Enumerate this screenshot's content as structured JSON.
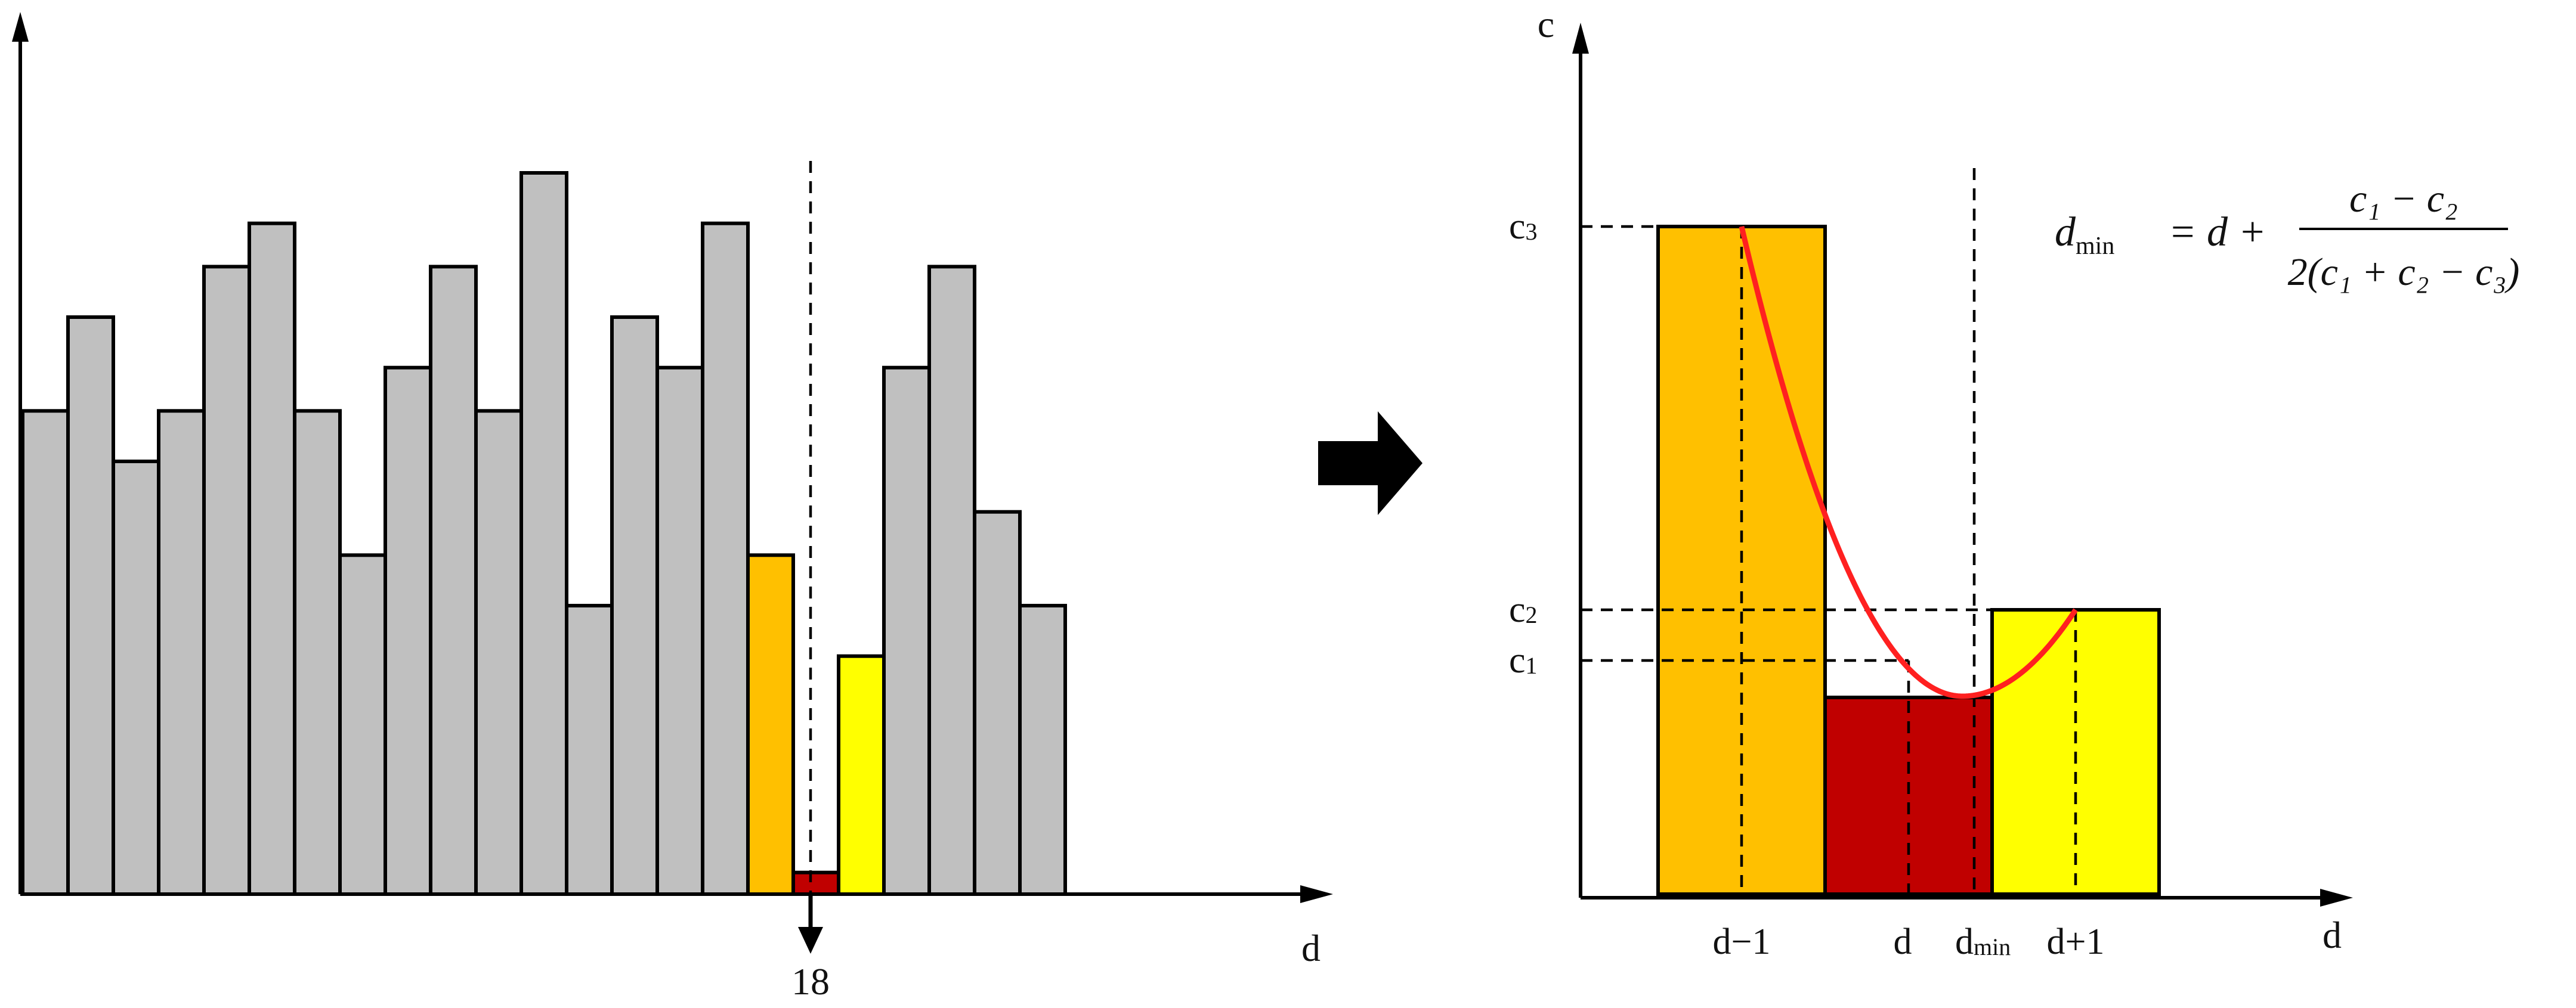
{
  "colors": {
    "gray_bar": "#c0c0c0",
    "orange_bar": "#ffc000",
    "red_bar": "#c00000",
    "yellow_bar": "#ffff00",
    "curve": "#ff2020"
  },
  "left_plot": {
    "x_axis_label": "d",
    "marker_label": "18",
    "bar_levels": [
      0.67,
      0.8,
      0.6,
      0.67,
      0.87,
      0.93,
      0.67,
      0.47,
      0.73,
      0.87,
      0.67,
      1.0,
      0.4,
      0.8,
      0.73,
      0.93,
      0.47,
      0.03,
      0.33,
      0.73,
      0.87,
      0.53,
      0.4
    ],
    "bar_colors": [
      "gray",
      "gray",
      "gray",
      "gray",
      "gray",
      "gray",
      "gray",
      "gray",
      "gray",
      "gray",
      "gray",
      "gray",
      "gray",
      "gray",
      "gray",
      "gray",
      "orange",
      "red",
      "yellow",
      "gray",
      "gray",
      "gray",
      "gray"
    ],
    "min_bar_index": 17
  },
  "arrow_icon": "right-arrow-icon",
  "right_plot": {
    "y_axis_label": "c",
    "x_axis_label": "d",
    "y_tick_labels": {
      "c3": "c",
      "c3_sub": "3",
      "c2": "c",
      "c2_sub": "2",
      "c1": "c",
      "c1_sub": "1"
    },
    "x_tick_labels": {
      "d_minus_1": "d−1",
      "d": "d",
      "d_min": "d",
      "d_min_sub": "min",
      "d_plus_1": "d+1"
    },
    "formula": {
      "lhs": "d",
      "lhs_sub": "min",
      "equals": "=",
      "rhs_d": "d +",
      "numerator": "c₁ − c₂",
      "denominator": "2(c₁ + c₂ − c₃)"
    }
  }
}
